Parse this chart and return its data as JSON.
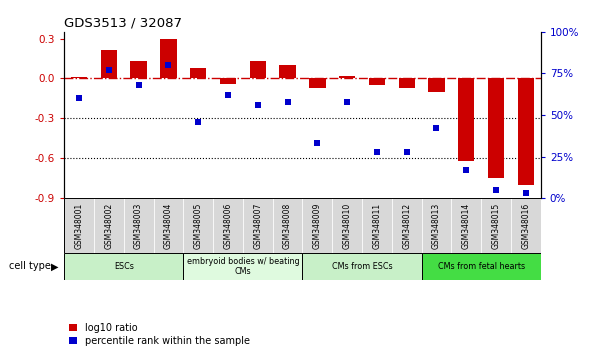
{
  "title": "GDS3513 / 32087",
  "samples": [
    "GSM348001",
    "GSM348002",
    "GSM348003",
    "GSM348004",
    "GSM348005",
    "GSM348006",
    "GSM348007",
    "GSM348008",
    "GSM348009",
    "GSM348010",
    "GSM348011",
    "GSM348012",
    "GSM348013",
    "GSM348014",
    "GSM348015",
    "GSM348016"
  ],
  "log10_ratio": [
    0.01,
    0.21,
    0.13,
    0.3,
    0.08,
    -0.04,
    0.13,
    0.1,
    -0.07,
    0.02,
    -0.05,
    -0.07,
    -0.1,
    -0.62,
    -0.75,
    -0.8
  ],
  "percentile_rank": [
    60,
    77,
    68,
    80,
    46,
    62,
    56,
    58,
    33,
    58,
    28,
    28,
    42,
    17,
    5,
    3
  ],
  "cell_type_groups": [
    {
      "label": "ESCs",
      "start": 0,
      "end": 3,
      "color": "#c8f0c8"
    },
    {
      "label": "embryoid bodies w/ beating\nCMs",
      "start": 4,
      "end": 7,
      "color": "#dffadf"
    },
    {
      "label": "CMs from ESCs",
      "start": 8,
      "end": 11,
      "color": "#c8f0c8"
    },
    {
      "label": "CMs from fetal hearts",
      "start": 12,
      "end": 15,
      "color": "#44dd44"
    }
  ],
  "bar_color": "#cc0000",
  "scatter_color": "#0000cc",
  "ylim_left": [
    -0.9,
    0.35
  ],
  "ylim_right": [
    0,
    100
  ],
  "yticks_left": [
    -0.9,
    -0.6,
    -0.3,
    0.0,
    0.3
  ],
  "yticks_right": [
    0,
    25,
    50,
    75,
    100
  ],
  "dotted_lines": [
    -0.3,
    -0.6
  ],
  "bg_color": "#ffffff",
  "sample_bg_color": "#d8d8d8",
  "legend_items": [
    {
      "label": "log10 ratio",
      "color": "#cc0000"
    },
    {
      "label": "percentile rank within the sample",
      "color": "#0000cc"
    }
  ]
}
